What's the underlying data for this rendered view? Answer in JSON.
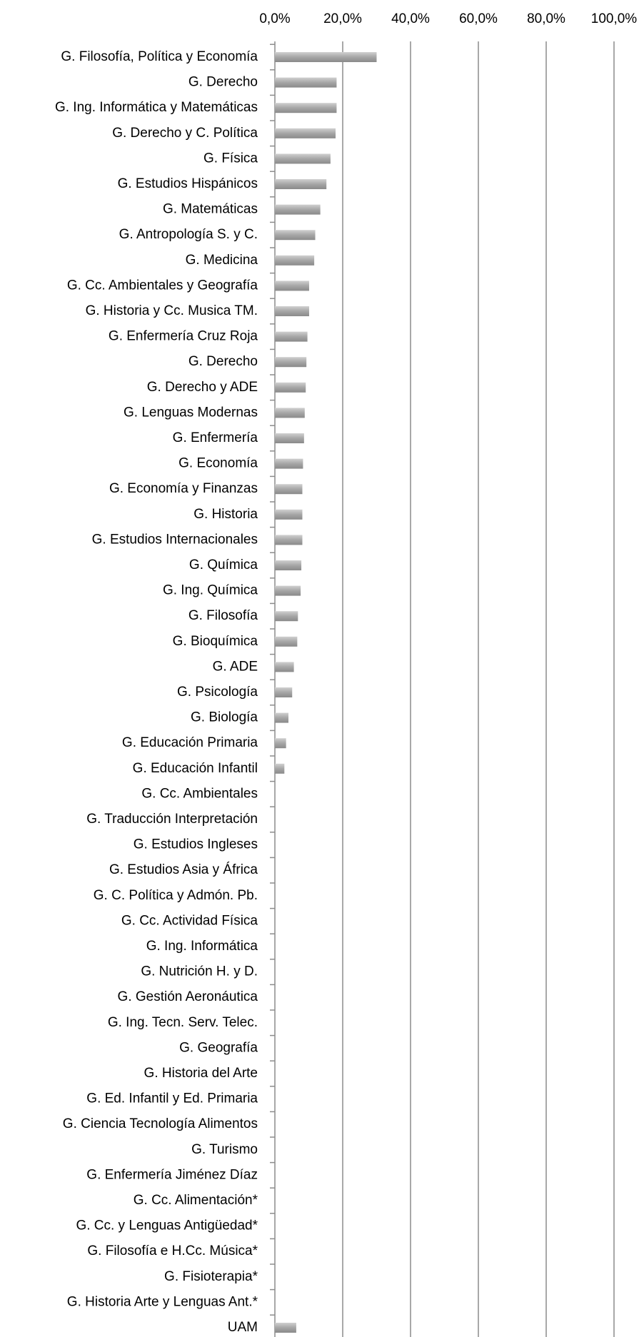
{
  "chart_data": {
    "type": "bar",
    "orientation": "horizontal",
    "categories": [
      "G. Filosofía, Política y Economía",
      "G. Derecho",
      "G. Ing. Informática y Matemáticas",
      "G. Derecho y C. Política",
      "G. Física",
      "G. Estudios Hispánicos",
      "G. Matemáticas",
      "G. Antropología S. y C.",
      "G. Medicina",
      "G. Cc. Ambientales y Geografía",
      "G. Historia y Cc. Musica TM.",
      "G. Enfermería Cruz Roja",
      "G. Derecho",
      "G. Derecho y ADE",
      "G. Lenguas Modernas",
      "G. Enfermería",
      "G. Economía",
      "G. Economía y Finanzas",
      "G. Historia",
      "G. Estudios Internacionales",
      "G. Química",
      "G. Ing. Química",
      "G. Filosofía",
      "G. Bioquímica",
      "G. ADE",
      "G. Psicología",
      "G. Biología",
      "G. Educación Primaria",
      "G. Educación Infantil",
      "G. Cc. Ambientales",
      "G. Traducción Interpretación",
      "G. Estudios Ingleses",
      "G. Estudios Asia y África",
      "G. C. Política y Admón. Pb.",
      "G. Cc. Actividad Física",
      "G. Ing. Informática",
      "G. Nutrición H. y D.",
      "G. Gestión Aeronáutica",
      "G. Ing. Tecn. Serv. Telec.",
      "G. Geografía",
      "G. Historia del Arte",
      "G. Ed. Infantil y Ed. Primaria",
      "G. Ciencia Tecnología Alimentos",
      "G. Turismo",
      "G. Enfermería Jiménez Díaz",
      "G. Cc. Alimentación*",
      "G. Cc. y Lenguas Antigüedad*",
      "G. Filosofía e H.Cc. Música*",
      "G. Fisioterapia*",
      "G. Historia Arte y Lenguas Ant.*",
      "UAM"
    ],
    "values": [
      30.0,
      18.2,
      18.2,
      17.9,
      16.4,
      15.2,
      13.4,
      11.9,
      11.6,
      10.1,
      10.1,
      9.6,
      9.3,
      9.1,
      8.8,
      8.6,
      8.3,
      8.1,
      8.1,
      8.1,
      7.8,
      7.6,
      6.8,
      6.6,
      5.6,
      5.1,
      4.0,
      3.3,
      2.8,
      0,
      0,
      0,
      0,
      0,
      0,
      0,
      0,
      0,
      0,
      0,
      0,
      0,
      0,
      0,
      0,
      0,
      0,
      0,
      0,
      0,
      6.3
    ],
    "color": "#a6a6a6",
    "xlim": [
      0,
      100
    ],
    "xticks": [
      {
        "value": 0,
        "label": "0,0%"
      },
      {
        "value": 20,
        "label": "20,0%"
      },
      {
        "value": 40,
        "label": "40,0%"
      },
      {
        "value": 60,
        "label": "60,0%"
      },
      {
        "value": 80,
        "label": "80,0%"
      },
      {
        "value": 100,
        "label": "100,0%"
      }
    ],
    "grid": true
  }
}
